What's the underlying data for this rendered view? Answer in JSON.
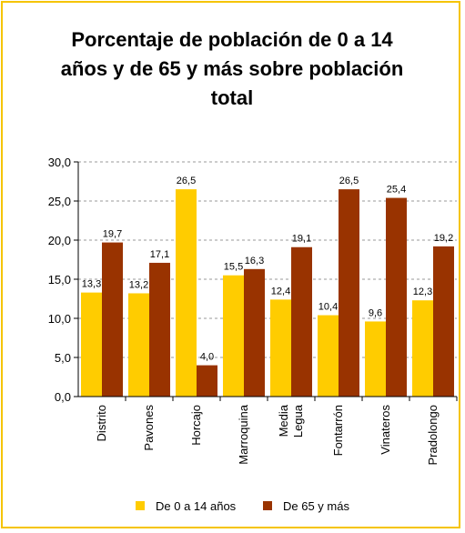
{
  "chart_data": {
    "type": "bar",
    "title": "Porcentaje de población de 0 a 14 años y de 65 y más sobre población total",
    "categories": [
      "Distrito",
      "Pavones",
      "Horcajo",
      "Marroquina",
      "Media Legua",
      "Fontarrón",
      "Vinateros",
      "Pradolongo"
    ],
    "series": [
      {
        "name": "De 0 a 14 años",
        "color": "#ffcc00",
        "values": [
          13.3,
          13.2,
          26.5,
          15.5,
          12.4,
          10.4,
          9.6,
          12.3
        ],
        "labels": [
          "13,3",
          "13,2",
          "26,5",
          "15,5",
          "12,4",
          "10,4",
          "9,6",
          "12,3"
        ]
      },
      {
        "name": "De 65 y más",
        "color": "#993300",
        "values": [
          19.7,
          17.1,
          4.0,
          16.3,
          19.1,
          26.5,
          25.4,
          19.2
        ],
        "labels": [
          "19,7",
          "17,1",
          "4,0",
          "16,3",
          "19,1",
          "26,5",
          "25,4",
          "19,2"
        ]
      }
    ],
    "ylim": [
      0,
      30
    ],
    "yticks": [
      0,
      5,
      10,
      15,
      20,
      25,
      30
    ],
    "ytick_labels": [
      "0,0",
      "5,0",
      "10,0",
      "15,0",
      "20,0",
      "25,0",
      "30,0"
    ],
    "grid": true,
    "legend": "bottom"
  }
}
